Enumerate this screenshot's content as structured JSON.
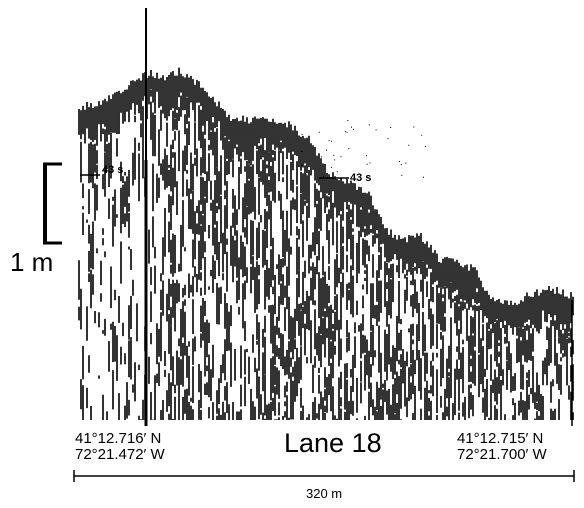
{
  "vertical_scale": {
    "label": "1 m"
  },
  "horizontal_scale": {
    "label": "320 m"
  },
  "title": "Lane 18",
  "start": {
    "lat": "41°12.716′ N",
    "lon": "72°21.472′ W"
  },
  "end": {
    "lat": "41°12.715′ N",
    "lon": "72°21.700′ W"
  },
  "markers": [
    {
      "label": "43 s"
    },
    {
      "label": "43 s"
    }
  ],
  "colors": {
    "ink": "#000000",
    "paper": "#ffffff"
  }
}
